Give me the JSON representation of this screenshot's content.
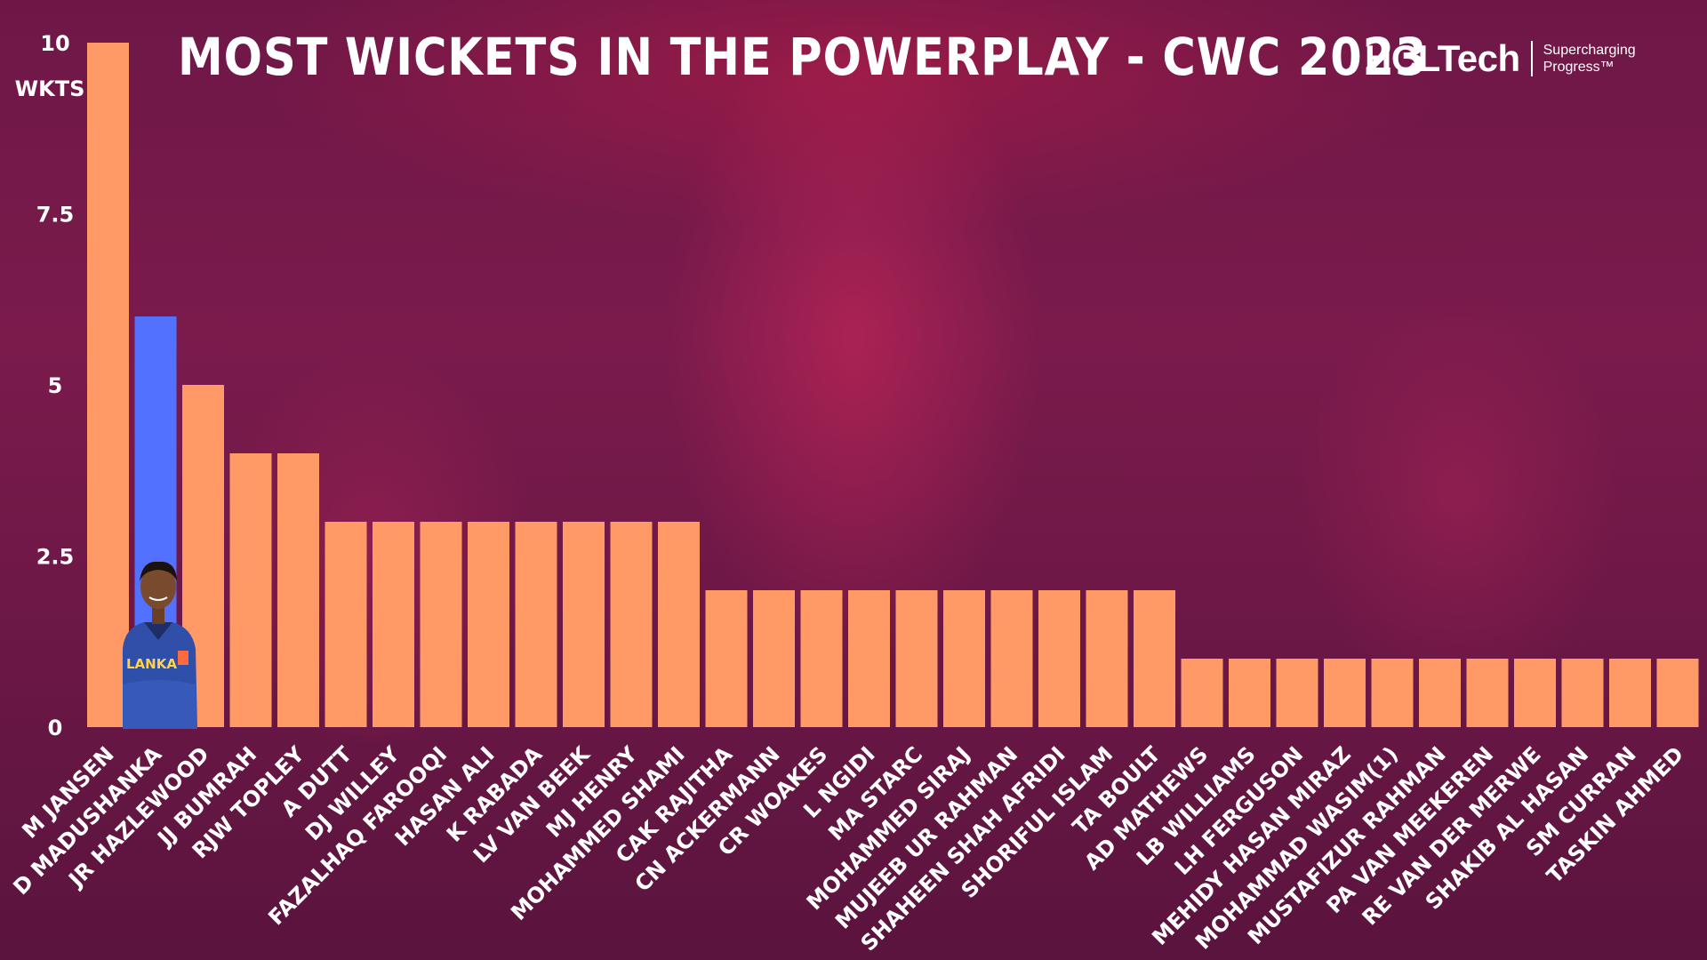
{
  "header": {
    "title": "MOST WICKETS IN THE POWERPLAY - CWC 2023"
  },
  "logo": {
    "wordmark": "HCLTech",
    "tagline_line1": "Supercharging",
    "tagline_line2": "Progress™"
  },
  "player_image": {
    "icon": "cricketer-photo-icon",
    "shirt_text": "LANKA"
  },
  "colors": {
    "bar": "#ff9966",
    "highlight_bar": "#5271ff",
    "text": "#ffffff"
  },
  "chart_data": {
    "type": "bar",
    "title": "MOST WICKETS IN THE POWERPLAY - CWC 2023",
    "xlabel": "",
    "ylabel": "WKTS",
    "ylim": [
      0,
      10
    ],
    "yticks": [
      "0",
      "2.5",
      "5",
      "7.5",
      "10"
    ],
    "highlight_index": 1,
    "grid": false,
    "categories": [
      "M JANSEN",
      "D MADUSHANKA",
      "JR HAZLEWOOD",
      "JJ BUMRAH",
      "RJW TOPLEY",
      "A DUTT",
      "DJ WILLEY",
      "FAZALHAQ FAROOQI",
      "HASAN ALI",
      "K RABADA",
      "LV VAN BEEK",
      "MJ HENRY",
      "MOHAMMED SHAMI",
      "CAK RAJITHA",
      "CN ACKERMANN",
      "CR WOAKES",
      "L NGIDI",
      "MA STARC",
      "MOHAMMED SIRAJ",
      "MUJEEB UR RAHMAN",
      "SHAHEEN SHAH AFRIDI",
      "SHORIFUL ISLAM",
      "TA BOULT",
      "AD MATHEWS",
      "LB WILLIAMS",
      "LH FERGUSON",
      "MEHIDY HASAN MIRAZ",
      "MOHAMMAD WASIM(1)",
      "MUSTAFIZUR RAHMAN",
      "PA VAN MEEKEREN",
      "RE VAN DER MERWE",
      "SHAKIB AL HASAN",
      "SM CURRAN",
      "TASKIN AHMED"
    ],
    "values": [
      10,
      6,
      5,
      4,
      4,
      3,
      3,
      3,
      3,
      3,
      3,
      3,
      3,
      2,
      2,
      2,
      2,
      2,
      2,
      2,
      2,
      2,
      2,
      1,
      1,
      1,
      1,
      1,
      1,
      1,
      1,
      1,
      1,
      1
    ]
  }
}
